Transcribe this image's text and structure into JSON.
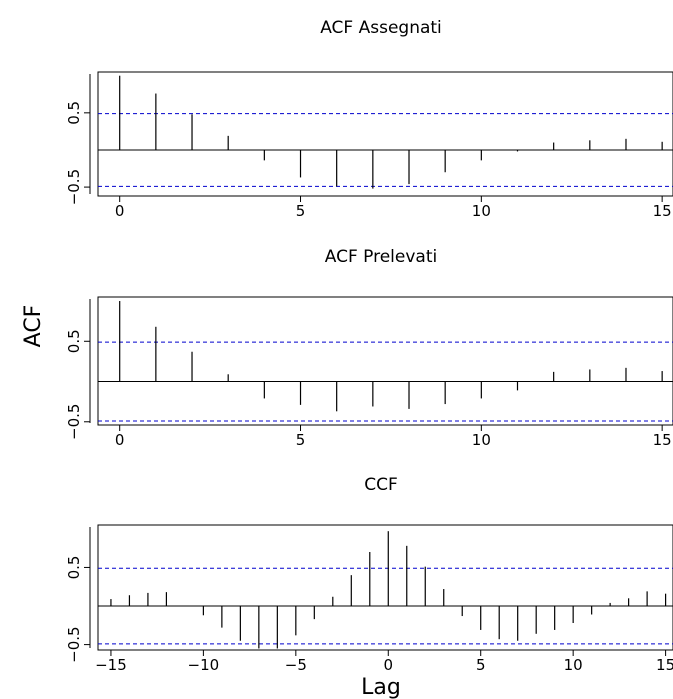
{
  "figure": {
    "ylabel": "ACF",
    "xlabel": "Lag"
  },
  "chart_data": [
    {
      "type": "bar",
      "title": "ACF Assegnati",
      "xlabel": "",
      "ylabel": "",
      "x": [
        0,
        1,
        2,
        3,
        4,
        5,
        6,
        7,
        8,
        9,
        10,
        11,
        12,
        13,
        14,
        15
      ],
      "values": [
        1.0,
        0.76,
        0.48,
        0.19,
        -0.14,
        -0.37,
        -0.49,
        -0.52,
        -0.46,
        -0.3,
        -0.14,
        -0.02,
        0.1,
        0.13,
        0.15,
        0.11
      ],
      "xlim": [
        -0.6,
        15.3
      ],
      "ylim": [
        -0.62,
        1.05
      ],
      "xticks": [
        0,
        5,
        10,
        15
      ],
      "yticks": [
        -0.5,
        0.5
      ],
      "ci": 0.49,
      "colors": {
        "bars": "#000000",
        "ci": "#0000cd",
        "zero": "#000000"
      }
    },
    {
      "type": "bar",
      "title": "ACF Prelevati",
      "xlabel": "",
      "ylabel": "",
      "x": [
        0,
        1,
        2,
        3,
        4,
        5,
        6,
        7,
        8,
        9,
        10,
        11,
        12,
        13,
        14,
        15
      ],
      "values": [
        1.0,
        0.68,
        0.37,
        0.09,
        -0.21,
        -0.29,
        -0.37,
        -0.31,
        -0.34,
        -0.28,
        -0.21,
        -0.11,
        0.12,
        0.15,
        0.17,
        0.13
      ],
      "xlim": [
        -0.6,
        15.3
      ],
      "ylim": [
        -0.54,
        1.05
      ],
      "xticks": [
        0,
        5,
        10,
        15
      ],
      "yticks": [
        -0.5,
        0.5
      ],
      "ci": 0.49,
      "colors": {
        "bars": "#000000",
        "ci": "#0000cd",
        "zero": "#000000"
      }
    },
    {
      "type": "bar",
      "title": "CCF",
      "xlabel": "",
      "ylabel": "",
      "x": [
        -15,
        -14,
        -13,
        -12,
        -11,
        -10,
        -9,
        -8,
        -7,
        -6,
        -5,
        -4,
        -3,
        -2,
        -1,
        0,
        1,
        2,
        3,
        4,
        5,
        6,
        7,
        8,
        9,
        10,
        11,
        12,
        13,
        14,
        15
      ],
      "values": [
        0.09,
        0.14,
        0.17,
        0.18,
        0.0,
        -0.12,
        -0.28,
        -0.45,
        -0.55,
        -0.55,
        -0.38,
        -0.17,
        0.12,
        0.4,
        0.7,
        0.97,
        0.78,
        0.51,
        0.22,
        -0.13,
        -0.31,
        -0.43,
        -0.45,
        -0.36,
        -0.31,
        -0.22,
        -0.11,
        0.04,
        0.1,
        0.19,
        0.16
      ],
      "xlim": [
        -15.7,
        15.4
      ],
      "ylim": [
        -0.57,
        1.05
      ],
      "xticks": [
        -15,
        -10,
        -5,
        0,
        5,
        10,
        15
      ],
      "yticks": [
        -0.5,
        0.5
      ],
      "ci": 0.49,
      "colors": {
        "bars": "#000000",
        "ci": "#0000cd",
        "zero": "#000000"
      }
    }
  ]
}
